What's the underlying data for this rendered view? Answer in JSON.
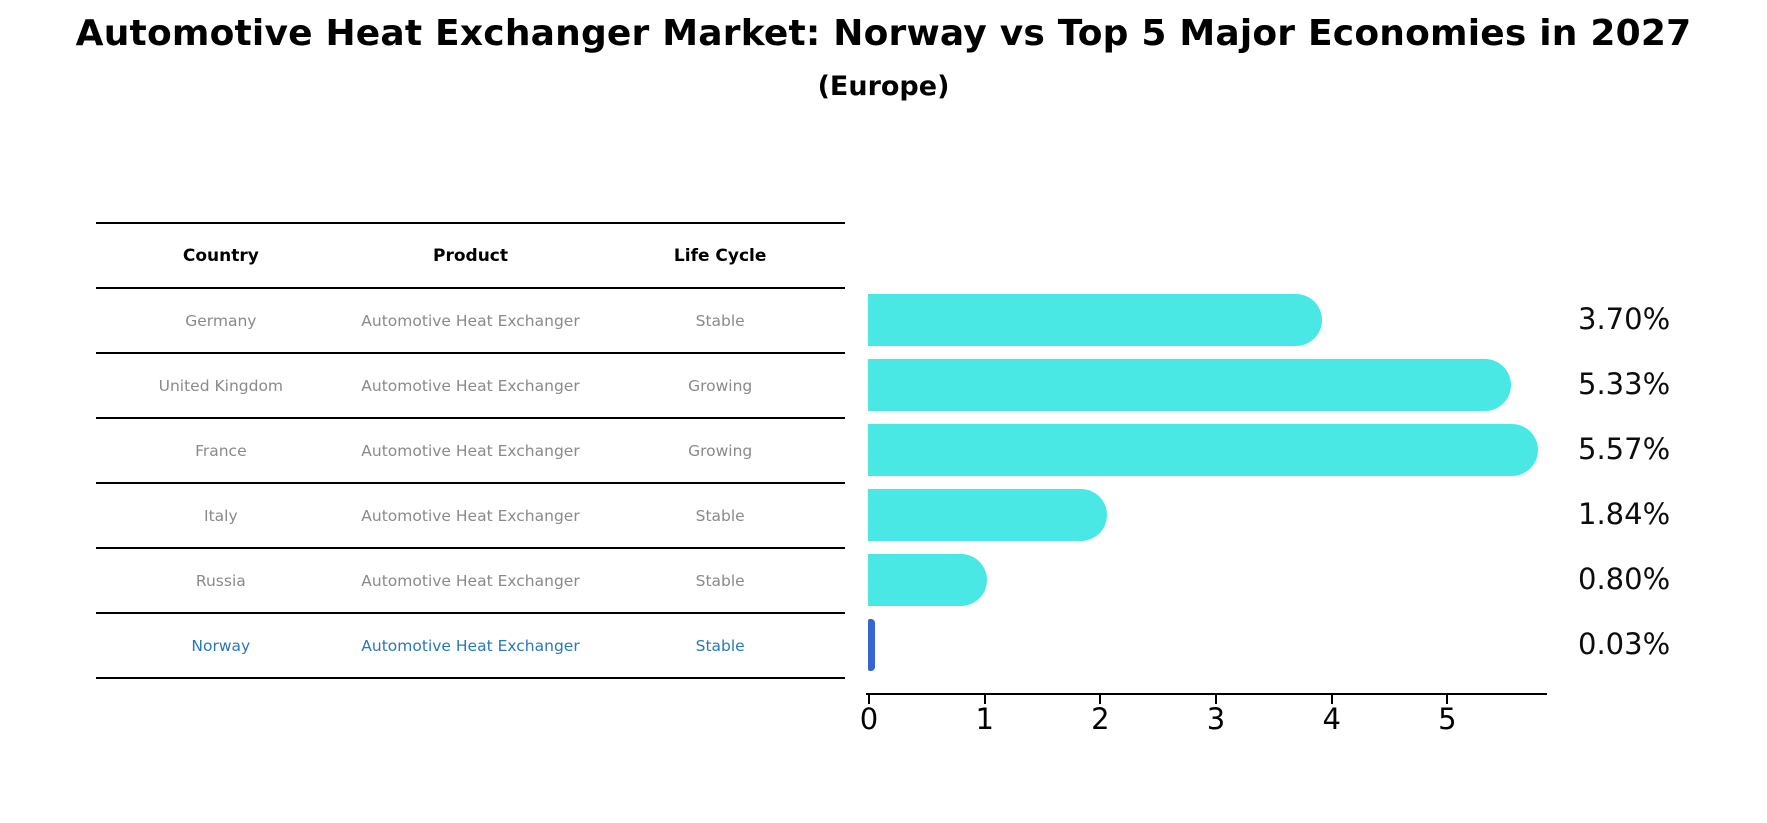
{
  "title": "Automotive Heat Exchanger Market: Norway vs Top 5 Major Economies in 2027",
  "subtitle": "(Europe)",
  "table": {
    "columns": [
      "Country",
      "Product",
      "Life Cycle"
    ],
    "rows": [
      {
        "country": "Germany",
        "product": "Automotive Heat Exchanger",
        "life_cycle": "Stable",
        "highlighted": false
      },
      {
        "country": "United Kingdom",
        "product": "Automotive Heat Exchanger",
        "life_cycle": "Growing",
        "highlighted": false
      },
      {
        "country": "France",
        "product": "Automotive Heat Exchanger",
        "life_cycle": "Growing",
        "highlighted": false
      },
      {
        "country": "Italy",
        "product": "Automotive Heat Exchanger",
        "life_cycle": "Stable",
        "highlighted": false
      },
      {
        "country": "Russia",
        "product": "Automotive Heat Exchanger",
        "life_cycle": "Stable",
        "highlighted": false
      },
      {
        "country": "Norway",
        "product": "Automotive Heat Exchanger",
        "life_cycle": "Stable",
        "highlighted": true
      }
    ]
  },
  "chart_data": {
    "type": "bar",
    "orientation": "horizontal",
    "title": "Automotive Heat Exchanger Market: Norway vs Top 5 Major Economies in 2027 (Europe)",
    "xlabel": "",
    "ylabel": "",
    "categories": [
      "Germany",
      "United Kingdom",
      "France",
      "Italy",
      "Russia",
      "Norway"
    ],
    "values": [
      3.7,
      5.33,
      5.57,
      1.84,
      0.8,
      0.03
    ],
    "value_labels": [
      "3.70%",
      "5.33%",
      "5.57%",
      "1.84%",
      "0.80%",
      "0.03%"
    ],
    "x_ticks": [
      0,
      1,
      2,
      3,
      4,
      5
    ],
    "xlim": [
      0,
      5.87
    ],
    "grid": false,
    "legend": "none",
    "bar_color": "#4AE8E4",
    "highlight_bar_color": "#3465D1",
    "highlight_text_color": "#2878BE",
    "axis_color": "#000000",
    "row_text_color": "#8a8a8a"
  }
}
